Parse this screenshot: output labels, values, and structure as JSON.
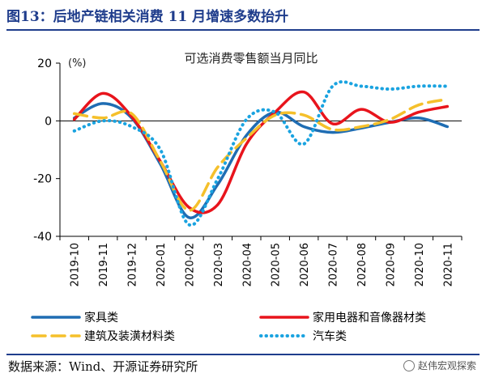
{
  "figure_title": "图13：后地产链相关消费 11 月增速多数抬升",
  "source_note": "数据来源：Wind、开源证券研究所",
  "watermark": "赵伟宏观探索",
  "chart_data": {
    "type": "line",
    "title": "可选消费零售额当月同比",
    "ylabel": "(%)",
    "xlabel": "",
    "ylim": [
      -40,
      20
    ],
    "yticks": [
      20,
      0,
      -20,
      -40
    ],
    "grid": false,
    "legend_placement": "bottom",
    "categories": [
      "2019-10",
      "2019-11",
      "2019-12",
      "2020-01",
      "2020-02",
      "2020-03",
      "2020-04",
      "2020-05",
      "2020-06",
      "2020-07",
      "2020-08",
      "2020-09",
      "2020-10",
      "2020-11"
    ],
    "series": [
      {
        "name": "家具类",
        "color": "#1f6db3",
        "style": "solid",
        "values": [
          1.0,
          6.0,
          1.0,
          -15.0,
          -33.5,
          -22.0,
          -5.0,
          3.0,
          -2.0,
          -4.0,
          -2.5,
          -0.5,
          1.0,
          -2.0
        ]
      },
      {
        "name": "家用电器和音像器材类",
        "color": "#e8141c",
        "style": "solid",
        "values": [
          0.5,
          9.5,
          1.5,
          -14.0,
          -30.0,
          -29.0,
          -8.0,
          3.0,
          10.0,
          -1.0,
          4.0,
          -0.5,
          3.0,
          5.0
        ]
      },
      {
        "name": "建筑及装潢材料类",
        "color": "#f5c02b",
        "style": "dashed",
        "values": [
          2.5,
          1.0,
          2.5,
          -14.0,
          -31.0,
          -16.0,
          -6.0,
          2.0,
          2.0,
          -3.0,
          -2.0,
          0.5,
          5.5,
          7.5
        ]
      },
      {
        "name": "汽车类",
        "color": "#1aa3e0",
        "style": "dotted",
        "values": [
          -3.5,
          0.0,
          -2.0,
          -10.0,
          -36.0,
          -20.0,
          0.5,
          3.0,
          -8.0,
          12.0,
          12.0,
          11.0,
          12.0,
          12.0
        ]
      }
    ]
  }
}
